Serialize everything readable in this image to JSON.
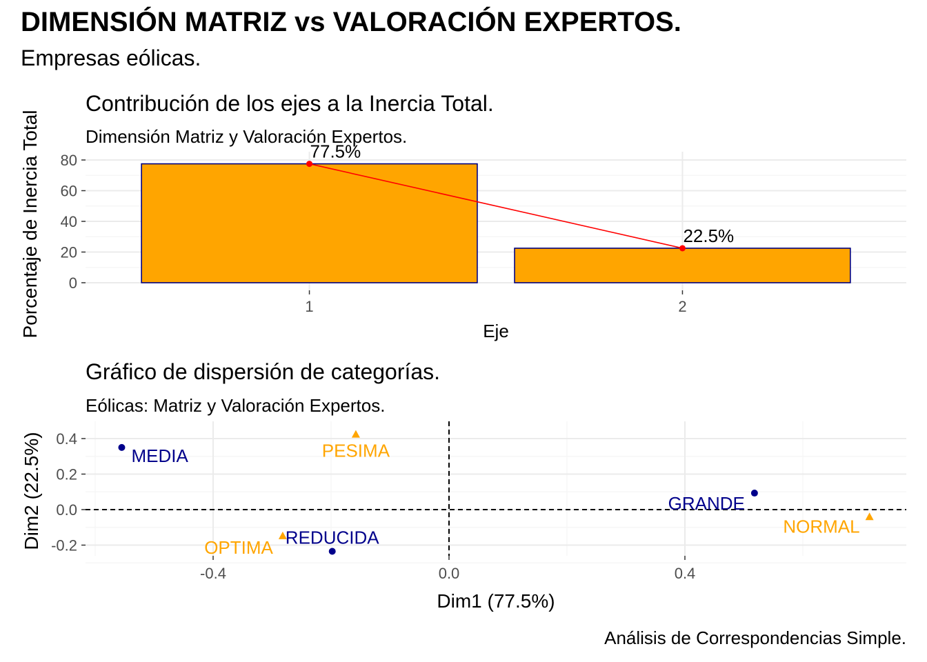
{
  "page": {
    "title": "DIMENSIÓN MATRIZ vs VALORACIÓN EXPERTOS.",
    "subtitle": "Empresas eólicas.",
    "caption": "Análisis de Correspondencias Simple."
  },
  "chart_data": [
    {
      "type": "bar",
      "title": "Contribución de los ejes a la Inercia Total.",
      "subtitle": "Dimensión Matriz y Valoración Expertos.",
      "xlabel": "Eje",
      "ylabel": "Porcentaje de Inercia Total",
      "categories": [
        "1",
        "2"
      ],
      "values": [
        77.5,
        22.5
      ],
      "labels": [
        "77.5%",
        "22.5%"
      ],
      "ylim": [
        0,
        80
      ],
      "yticks": [
        0,
        20,
        40,
        60,
        80
      ],
      "grid": true,
      "line_overlay": true,
      "colors": {
        "bar_fill": "#FFA500",
        "bar_border": "#000080",
        "line": "#FF0000",
        "grid": "#EBEBEB"
      }
    },
    {
      "type": "scatter",
      "title": "Gráfico de dispersión de categorías.",
      "subtitle": "Eólicas: Matriz y Valoración Expertos.",
      "xlabel": "Dim1 (77.5%)",
      "ylabel": "Dim2 (22.5%)",
      "xlim": [
        -0.6,
        0.75
      ],
      "ylim": [
        -0.26,
        0.45
      ],
      "xticks": [
        -0.4,
        0.0,
        0.4
      ],
      "xtick_labels": [
        "-0.4",
        "0.0",
        "0.4"
      ],
      "yticks": [
        -0.2,
        0.0,
        0.2,
        0.4
      ],
      "ytick_labels": [
        "-0.2",
        "0.0",
        "0.2",
        "0.4"
      ],
      "grid": true,
      "reference_lines": {
        "x": 0,
        "y": 0,
        "style": "dashed"
      },
      "series": [
        {
          "color": "#00008B",
          "marker": "circle",
          "points": [
            {
              "label": "MEDIA",
              "x": -0.555,
              "y": 0.35
            },
            {
              "label": "GRANDE",
              "x": 0.518,
              "y": 0.093
            },
            {
              "label": "REDUCIDA",
              "x": -0.198,
              "y": -0.235
            }
          ]
        },
        {
          "color": "#FFA500",
          "marker": "triangle",
          "points": [
            {
              "label": "PESIMA",
              "x": -0.158,
              "y": 0.425
            },
            {
              "label": "NORMAL",
              "x": 0.713,
              "y": -0.04
            },
            {
              "label": "OPTIMA",
              "x": -0.282,
              "y": -0.147
            }
          ]
        }
      ]
    }
  ]
}
